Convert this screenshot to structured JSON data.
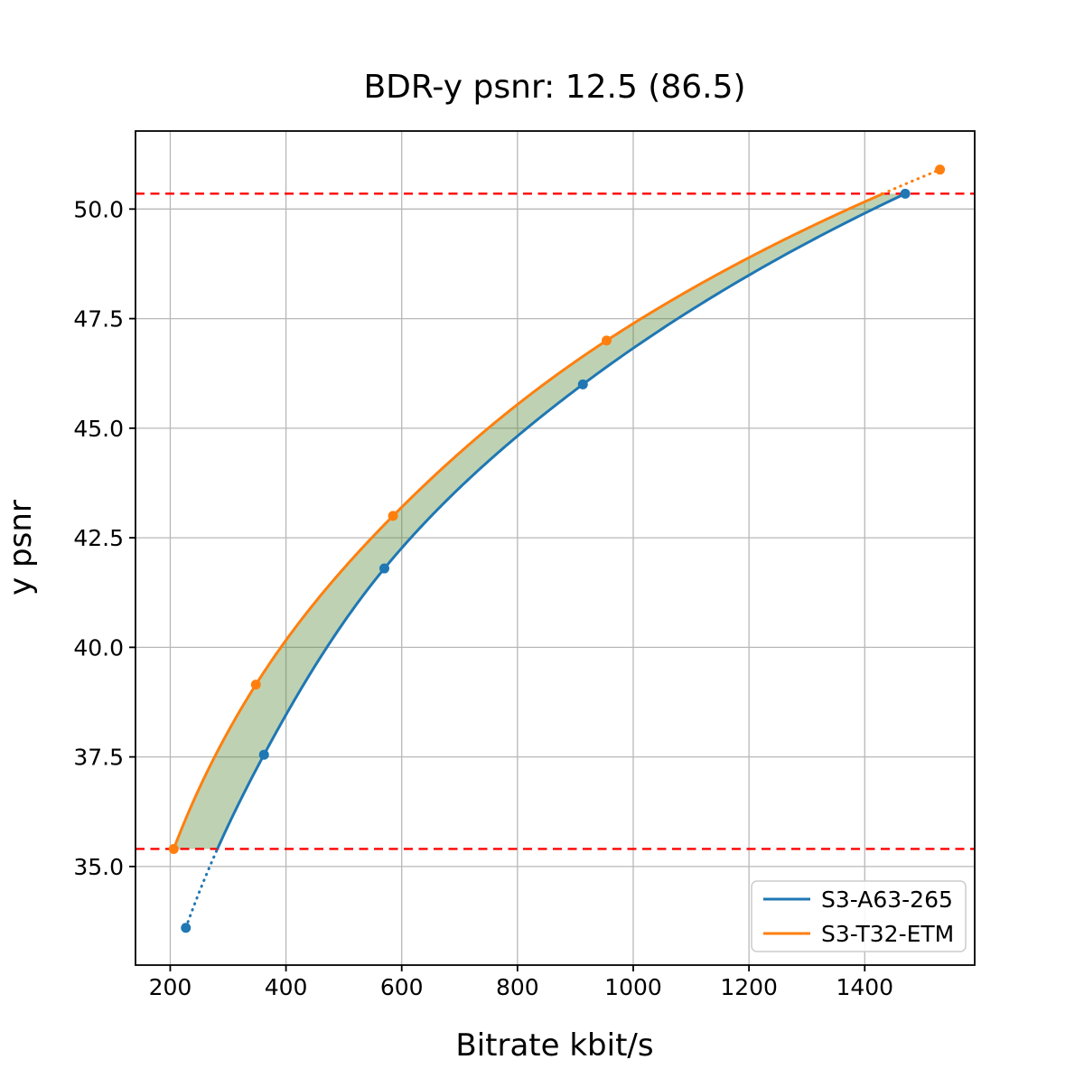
{
  "chart_data": {
    "type": "line",
    "title": "BDR-y psnr: 12.5 (86.5)",
    "xlabel": "Bitrate kbit/s",
    "ylabel": "y psnr",
    "xlim": [
      140,
      1590
    ],
    "ylim": [
      32.75,
      51.78
    ],
    "xticks": [
      200,
      400,
      600,
      800,
      1000,
      1200,
      1400
    ],
    "yticks": [
      35.0,
      37.5,
      40.0,
      42.5,
      45.0,
      47.5,
      50.0
    ],
    "grid": true,
    "grid_color": "#b8b8b8",
    "legend_position": "lower right",
    "series": [
      {
        "name": "S3-A63-265",
        "color": "#1f77b4",
        "x": [
          227,
          362,
          570,
          913,
          1470
        ],
        "y": [
          33.6,
          37.55,
          41.8,
          46.0,
          50.35
        ]
      },
      {
        "name": "S3-T32-ETM",
        "color": "#ff7f0e",
        "x": [
          206,
          348,
          585,
          954,
          1530
        ],
        "y": [
          35.4,
          39.15,
          43.0,
          47.0,
          50.9
        ]
      }
    ],
    "hlines": {
      "color": "#ff0000",
      "style": "dashed",
      "values": [
        35.4,
        50.35
      ],
      "meaning": "overlap bounds of the two rate-distortion curves"
    },
    "fill_between": {
      "color": "rgba(85,138,55,0.38)",
      "range": [
        35.4,
        50.35
      ]
    }
  }
}
